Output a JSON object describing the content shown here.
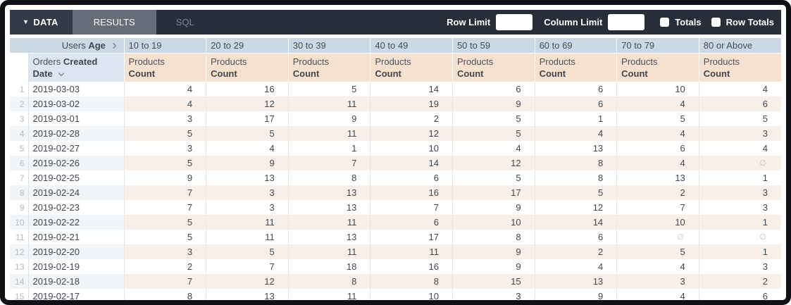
{
  "toolbar": {
    "data_tab": "DATA",
    "results_tab": "RESULTS",
    "sql_tab": "SQL",
    "row_limit_label": "Row Limit",
    "row_limit_value": "",
    "column_limit_label": "Column Limit",
    "column_limit_value": "",
    "totals_label": "Totals",
    "row_totals_label": "Row Totals",
    "totals_checked": false,
    "row_totals_checked": false
  },
  "icons": {
    "data_caret": "caret-down-icon",
    "pivot_chevron": "chevron-right-icon",
    "sort_chevron": "chevron-down-icon"
  },
  "colors": {
    "toolbar_bg": "#272d39",
    "data_tab_bg": "#323947",
    "results_tab_bg": "#676d78",
    "sql_text": "#7e8591",
    "pivot_header_bg": "#cbd9e7",
    "dimension_header_bg": "#dce6f0",
    "measure_header_bg": "#f6e1cf",
    "stripe_dimension_bg": "#f2f5f7",
    "stripe_measure_bg": "#f8f0e8",
    "body_text": "#404750",
    "null_text": "#c7c2bb"
  },
  "table": {
    "pivot_header": {
      "prefix": "Users",
      "bold": "Age"
    },
    "row_header": {
      "prefix": "Orders",
      "bold": "Created Date"
    },
    "measure": {
      "line1": "Products",
      "line2": "Count"
    },
    "age_buckets": [
      "10 to 19",
      "20 to 29",
      "30 to 39",
      "40 to 49",
      "50 to 59",
      "60 to 69",
      "70 to 79",
      "80 or Above"
    ],
    "null_symbol": "∅",
    "rows": [
      {
        "num": "1",
        "date": "2019-03-03",
        "values": [
          "4",
          "16",
          "5",
          "14",
          "6",
          "6",
          "10",
          "4"
        ]
      },
      {
        "num": "2",
        "date": "2019-03-02",
        "values": [
          "4",
          "12",
          "11",
          "19",
          "9",
          "6",
          "4",
          "6"
        ]
      },
      {
        "num": "3",
        "date": "2019-03-01",
        "values": [
          "3",
          "17",
          "9",
          "2",
          "5",
          "1",
          "5",
          "5"
        ]
      },
      {
        "num": "4",
        "date": "2019-02-28",
        "values": [
          "5",
          "5",
          "11",
          "12",
          "5",
          "4",
          "4",
          "3"
        ]
      },
      {
        "num": "5",
        "date": "2019-02-27",
        "values": [
          "3",
          "4",
          "1",
          "10",
          "4",
          "13",
          "6",
          "4"
        ]
      },
      {
        "num": "6",
        "date": "2019-02-26",
        "values": [
          "5",
          "9",
          "7",
          "14",
          "12",
          "8",
          "4",
          "∅"
        ]
      },
      {
        "num": "7",
        "date": "2019-02-25",
        "values": [
          "9",
          "13",
          "8",
          "6",
          "5",
          "8",
          "13",
          "1"
        ]
      },
      {
        "num": "8",
        "date": "2019-02-24",
        "values": [
          "7",
          "3",
          "13",
          "16",
          "17",
          "5",
          "2",
          "3"
        ]
      },
      {
        "num": "9",
        "date": "2019-02-23",
        "values": [
          "7",
          "3",
          "13",
          "7",
          "9",
          "12",
          "7",
          "3"
        ]
      },
      {
        "num": "10",
        "date": "2019-02-22",
        "values": [
          "5",
          "11",
          "11",
          "6",
          "10",
          "14",
          "10",
          "1"
        ]
      },
      {
        "num": "11",
        "date": "2019-02-21",
        "values": [
          "5",
          "11",
          "13",
          "17",
          "8",
          "6",
          "∅",
          "∅"
        ]
      },
      {
        "num": "12",
        "date": "2019-02-20",
        "values": [
          "3",
          "5",
          "11",
          "11",
          "9",
          "2",
          "5",
          "1"
        ]
      },
      {
        "num": "13",
        "date": "2019-02-19",
        "values": [
          "2",
          "7",
          "18",
          "16",
          "9",
          "4",
          "4",
          "3"
        ]
      },
      {
        "num": "14",
        "date": "2019-02-18",
        "values": [
          "7",
          "12",
          "8",
          "8",
          "15",
          "13",
          "3",
          "2"
        ]
      },
      {
        "num": "15",
        "date": "2019-02-17",
        "values": [
          "8",
          "13",
          "11",
          "10",
          "3",
          "9",
          "4",
          "6"
        ]
      }
    ]
  }
}
